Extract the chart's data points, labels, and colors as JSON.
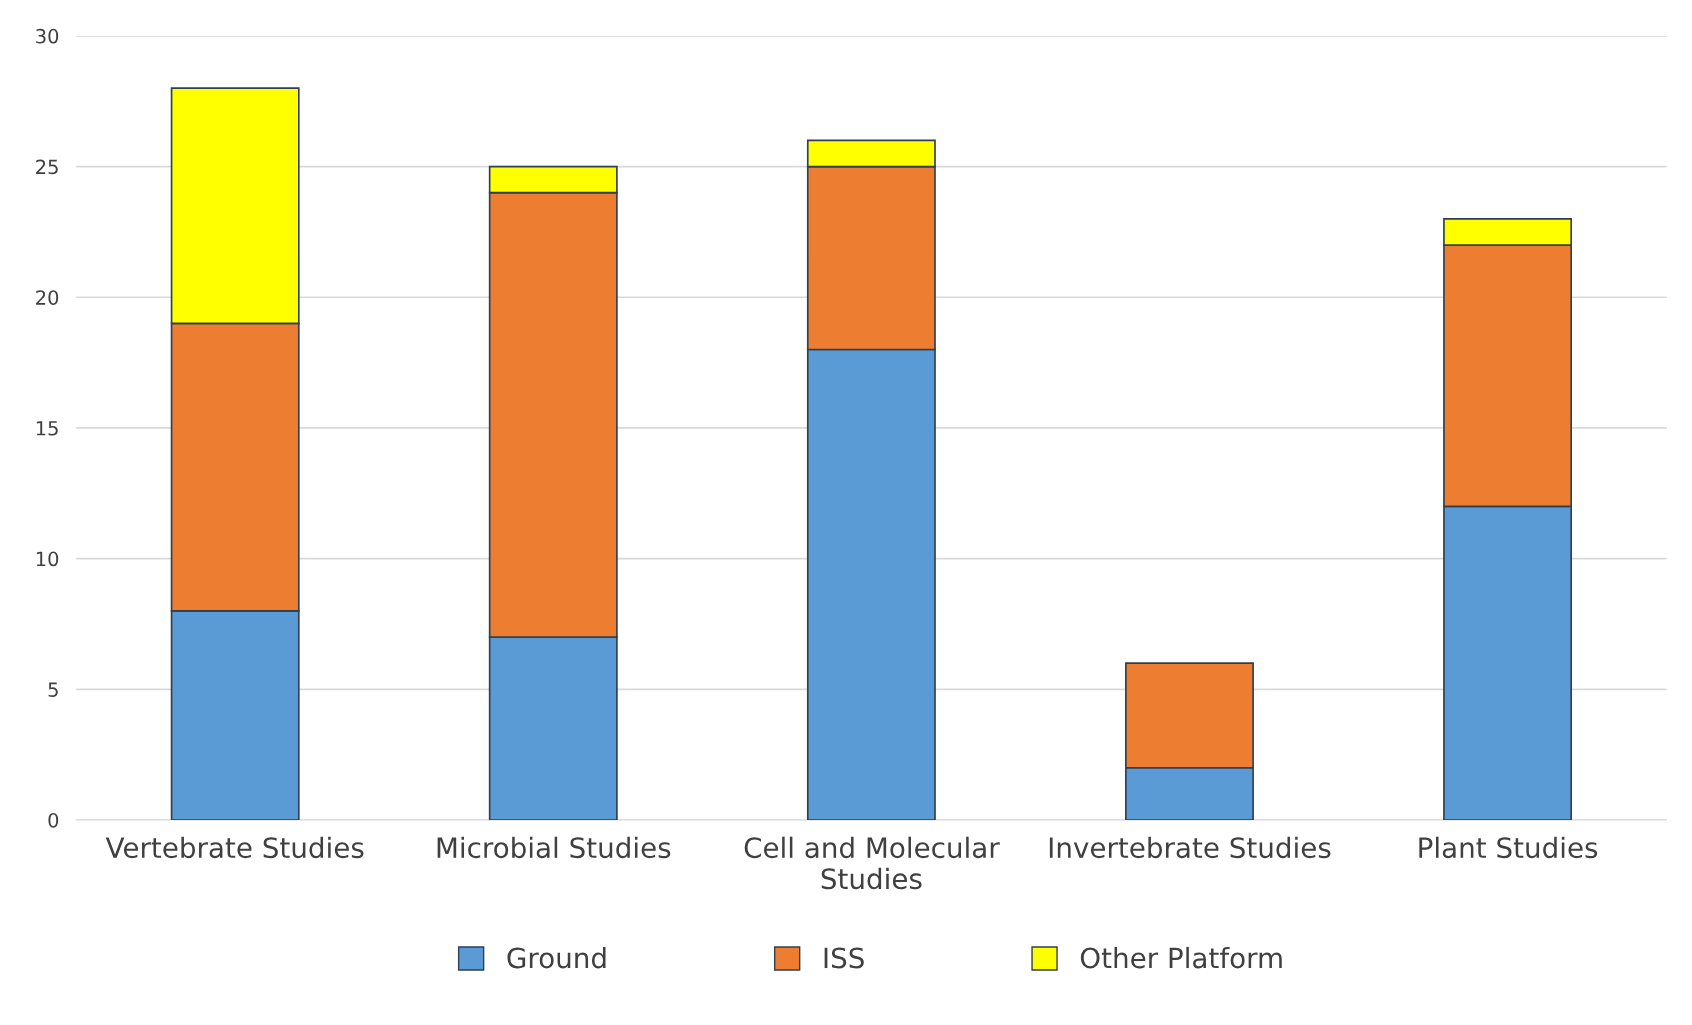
{
  "chart_data": {
    "type": "bar",
    "stacked": true,
    "categories": [
      "Vertebrate Studies",
      "Microbial Studies",
      "Cell and Molecular\nStudies",
      "Invertebrate Studies",
      "Plant Studies"
    ],
    "series": [
      {
        "name": "Ground",
        "color": "#5b9bd5",
        "values": [
          8,
          7,
          18,
          2,
          12
        ]
      },
      {
        "name": "ISS",
        "color": "#ed7d31",
        "values": [
          11,
          17,
          7,
          4,
          10
        ]
      },
      {
        "name": "Other Platform",
        "color": "#ffff00",
        "values": [
          9,
          1,
          1,
          null,
          1
        ]
      }
    ],
    "ylim": [
      0,
      30
    ],
    "yticks": [
      0,
      5,
      10,
      15,
      20,
      25,
      30
    ],
    "grid": "y",
    "legend": "bottom"
  }
}
